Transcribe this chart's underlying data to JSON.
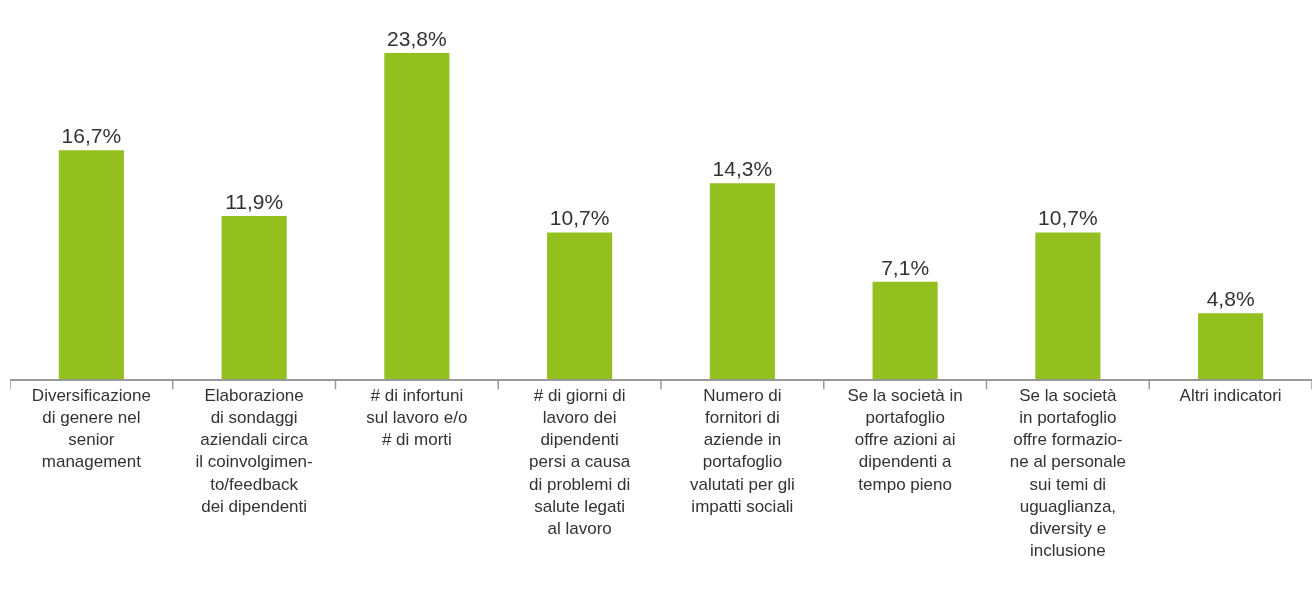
{
  "chart_data": {
    "type": "bar",
    "categories": [
      "Diversificazione\ndi genere nel\nsenior\nmanagement",
      "Elaborazione\ndi sondaggi\naziendali circa\nil coinvolgimen-\nto/feedback\ndei dipendenti",
      "# di infortuni\nsul lavoro e/o\n# di morti",
      "# di giorni di\nlavoro dei\ndipendenti\npersi a causa\ndi problemi di\nsalute legati\nal lavoro",
      "Numero di\nfornitori di\naziende in\nportafoglio\nvalutati per gli\nimpatti sociali",
      "Se la società in\nportafoglio\noffre azioni ai\ndipendenti a\ntempo pieno",
      "Se la società\nin portafoglio\noffre formazio-\nne al personale\nsui temi di\nuguaglianza,\ndiversity e\ninclusione",
      "Altri indicatori"
    ],
    "values": [
      16.7,
      11.9,
      23.8,
      10.7,
      14.3,
      7.1,
      10.7,
      4.8
    ],
    "value_labels": [
      "16,7%",
      "11,9%",
      "23,8%",
      "10,7%",
      "14,3%",
      "7,1%",
      "10,7%",
      "4,8%"
    ],
    "color": "#93c01f"
  }
}
